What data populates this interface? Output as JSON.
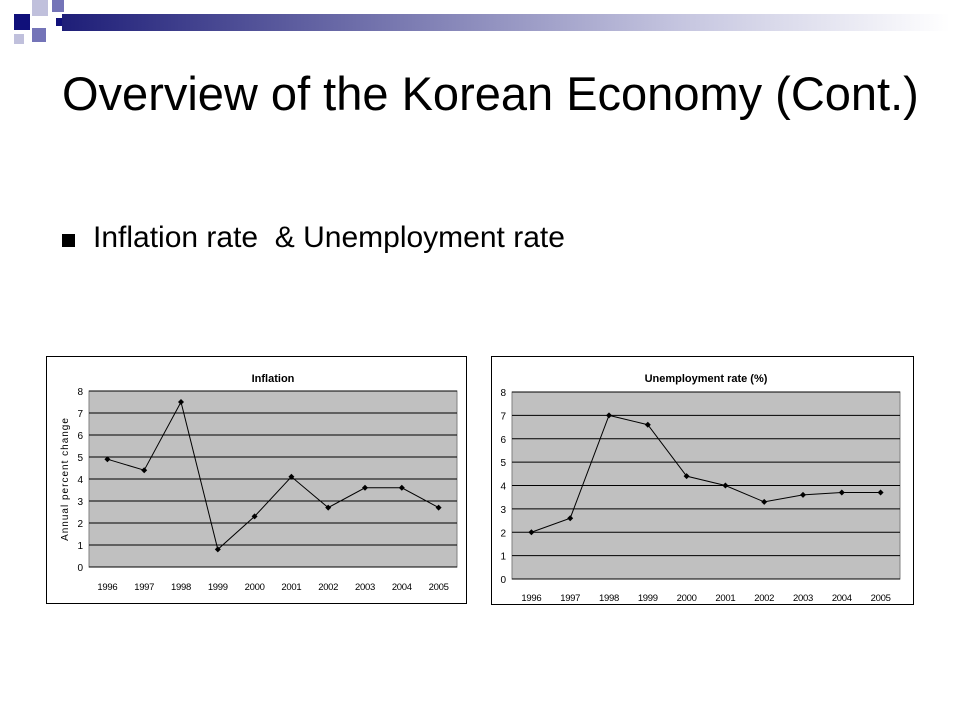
{
  "slide": {
    "title": "Overview of the Korean Economy (Cont.)",
    "bullet": "Inflation rate  & Unemployment rate",
    "colors": {
      "title_bar_dark": "#1e1e78",
      "title_bar_light": "#c6c6e0",
      "square_dark": "#10107a",
      "square_mid": "#7474b8",
      "square_light": "#c0c0dc",
      "plot_bg": "#c0c0c0",
      "series": "#000000"
    }
  },
  "chart_data": [
    {
      "type": "line",
      "title": "Inflation",
      "xlabel": "",
      "ylabel": "Annual percent change",
      "categories": [
        "1996",
        "1997",
        "1998",
        "1999",
        "2000",
        "2001",
        "2002",
        "2003",
        "2004",
        "2005"
      ],
      "values": [
        4.9,
        4.4,
        7.5,
        0.8,
        2.3,
        4.1,
        2.7,
        3.6,
        3.6,
        2.7
      ],
      "y_ticks": [
        "0",
        "1",
        "2",
        "3",
        "4",
        "5",
        "6",
        "7",
        "8"
      ],
      "ylim": [
        0,
        8
      ],
      "grid": true,
      "legend": "none",
      "background": "#c0c0c0"
    },
    {
      "type": "line",
      "title": "Unemployment rate (%)",
      "xlabel": "",
      "ylabel": "",
      "categories": [
        "1996",
        "1997",
        "1998",
        "1999",
        "2000",
        "2001",
        "2002",
        "2003",
        "2004",
        "2005"
      ],
      "values": [
        2.0,
        2.6,
        7.0,
        6.6,
        4.4,
        4.0,
        3.3,
        3.6,
        3.7,
        3.7
      ],
      "y_ticks": [
        "0",
        "1",
        "2",
        "3",
        "4",
        "5",
        "6",
        "7",
        "8"
      ],
      "ylim": [
        0,
        8
      ],
      "grid": true,
      "legend": "none",
      "background": "#c0c0c0"
    }
  ]
}
